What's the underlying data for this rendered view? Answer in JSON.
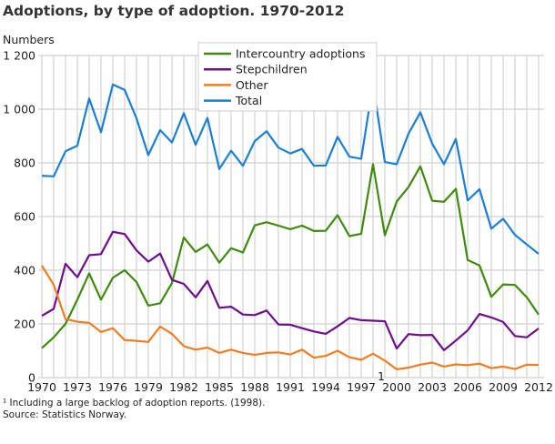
{
  "chart_data": {
    "type": "line",
    "title": "Adoptions, by type of adoption. 1970-2012",
    "ylabel": "Numbers",
    "xlabel": "",
    "ylim": [
      0,
      1200
    ],
    "yticks": [
      0,
      200,
      400,
      600,
      800,
      1000,
      1200
    ],
    "ytick_labels": [
      "0",
      "200",
      "400",
      "600",
      "800",
      "1 000",
      "1 200"
    ],
    "x": [
      1970,
      1971,
      1972,
      1973,
      1974,
      1975,
      1976,
      1977,
      1978,
      1979,
      1980,
      1981,
      1982,
      1983,
      1984,
      1985,
      1986,
      1987,
      1988,
      1989,
      1990,
      1991,
      1992,
      1993,
      1994,
      1995,
      1996,
      1997,
      1998,
      1999,
      2000,
      2001,
      2002,
      2003,
      2004,
      2005,
      2006,
      2007,
      2008,
      2009,
      2010,
      2011,
      2012
    ],
    "xtick_labels": [
      "1970",
      "1973",
      "1976",
      "1979",
      "1982",
      "1985",
      "1988",
      "1991",
      "1994",
      "1997",
      "2000",
      "2003",
      "2006",
      "2009",
      "2012"
    ],
    "xtick_note": {
      "year": "1998",
      "marker": "1"
    },
    "grid": true,
    "legend": "top-center",
    "series": [
      {
        "name": "Intercountry adoptions",
        "color": "#3f8a0e",
        "values": [
          110,
          150,
          200,
          290,
          388,
          290,
          372,
          400,
          356,
          268,
          277,
          352,
          522,
          468,
          496,
          428,
          482,
          466,
          567,
          579,
          566,
          553,
          566,
          546,
          547,
          605,
          527,
          536,
          795,
          530,
          656,
          710,
          787,
          659,
          655,
          703,
          438,
          418,
          301,
          347,
          345,
          299,
          235
        ]
      },
      {
        "name": "Stepchildren",
        "color": "#6d0e8c",
        "values": [
          230,
          256,
          424,
          374,
          456,
          460,
          543,
          535,
          474,
          432,
          462,
          364,
          349,
          299,
          360,
          260,
          264,
          235,
          233,
          250,
          198,
          197,
          184,
          172,
          163,
          191,
          222,
          214,
          212,
          210,
          108,
          162,
          158,
          159,
          102,
          138,
          176,
          237,
          224,
          207,
          155,
          150,
          183
        ]
      },
      {
        "name": "Other",
        "color": "#f07d22",
        "values": [
          417,
          346,
          218,
          208,
          204,
          170,
          184,
          140,
          137,
          133,
          190,
          163,
          117,
          104,
          112,
          92,
          104,
          92,
          85,
          92,
          94,
          86,
          104,
          74,
          81,
          100,
          76,
          66,
          89,
          63,
          31,
          37,
          48,
          56,
          41,
          49,
          46,
          52,
          35,
          41,
          32,
          48,
          47
        ]
      },
      {
        "name": "Total",
        "color": "#1a7fd4",
        "values": [
          752,
          750,
          843,
          864,
          1040,
          914,
          1092,
          1072,
          966,
          829,
          922,
          876,
          985,
          867,
          967,
          777,
          845,
          789,
          881,
          918,
          857,
          835,
          852,
          789,
          790,
          897,
          823,
          815,
          1094,
          803,
          795,
          909,
          988,
          872,
          795,
          889,
          660,
          702,
          555,
          592,
          532,
          496,
          461
        ]
      }
    ]
  },
  "footnotes": {
    "note1": "¹ Including a large backlog of adoption reports. (1998).",
    "source": "Source: Statistics Norway."
  }
}
